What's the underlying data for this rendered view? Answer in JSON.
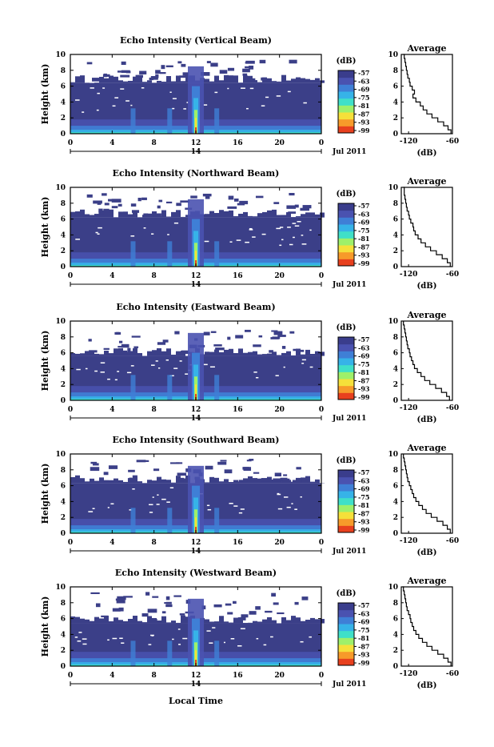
{
  "common": {
    "ylabel": "Height (km)",
    "date_day": "14",
    "date_label": "Jul 2011",
    "xlabel": "Local Time",
    "colorbar_unit": "(dB)",
    "colorbar_ticks": [
      "-57",
      "-63",
      "-69",
      "-75",
      "-81",
      "-87",
      "-93",
      "-99"
    ],
    "colorbar_colors": [
      "#3a3d8c",
      "#4a52b0",
      "#3f7fd6",
      "#36b3e8",
      "#3fe0c8",
      "#9ef06a",
      "#f5e03a",
      "#f79a2a",
      "#e8401e"
    ],
    "avg_title": "Average",
    "avg_xlabel": "(dB)",
    "avg_xticks": [
      "-120",
      "-60"
    ],
    "background_color": "#3b3f88",
    "streak_color": "#f5e03a",
    "hot_color": "#e8401e"
  },
  "chart_data": [
    {
      "type": "heatmap",
      "title": "Echo Intensity (Vertical Beam)",
      "x_ticks": [
        "0",
        "4",
        "8",
        "12",
        "16",
        "20",
        "0"
      ],
      "y_ticks": [
        "10",
        "8",
        "6",
        "4",
        "2",
        "0"
      ],
      "xlim": [
        0,
        24
      ],
      "ylim": [
        0,
        10
      ],
      "cbar_range": [
        -99,
        -57
      ],
      "echo_top_km": 6.4,
      "average_profile": {
        "xlim": [
          -130,
          -60
        ],
        "heights_km": [
          0,
          0.5,
          1,
          1.5,
          2,
          2.5,
          3,
          3.5,
          4,
          4.5,
          5,
          5.5,
          6,
          6.5,
          7,
          7.5,
          8,
          8.5,
          9,
          9.5,
          10
        ],
        "values_db": [
          -62,
          -66,
          -72,
          -80,
          -88,
          -95,
          -100,
          -104,
          -110,
          -114,
          -112,
          -115,
          -118,
          -119,
          -121,
          -122,
          -123,
          -124,
          -125,
          -126,
          -127
        ]
      }
    },
    {
      "type": "heatmap",
      "title": "Echo Intensity (Northward Beam)",
      "x_ticks": [
        "0",
        "4",
        "8",
        "12",
        "16",
        "20",
        "0"
      ],
      "y_ticks": [
        "10",
        "8",
        "6",
        "4",
        "2",
        "0"
      ],
      "xlim": [
        0,
        24
      ],
      "ylim": [
        0,
        10
      ],
      "cbar_range": [
        -99,
        -57
      ],
      "echo_top_km": 6.2,
      "average_profile": {
        "xlim": [
          -130,
          -60
        ],
        "heights_km": [
          0,
          0.5,
          1,
          1.5,
          2,
          2.5,
          3,
          3.5,
          4,
          4.5,
          5,
          5.5,
          6,
          6.5,
          7,
          7.5,
          8,
          8.5,
          9,
          9.5,
          10
        ],
        "values_db": [
          -63,
          -67,
          -74,
          -82,
          -90,
          -97,
          -103,
          -107,
          -111,
          -113,
          -114,
          -117,
          -119,
          -120,
          -122,
          -123,
          -124,
          -125,
          -126,
          -126,
          -127
        ]
      }
    },
    {
      "type": "heatmap",
      "title": "Echo Intensity (Eastward Beam)",
      "x_ticks": [
        "0",
        "4",
        "8",
        "12",
        "16",
        "20",
        "0"
      ],
      "y_ticks": [
        "10",
        "8",
        "6",
        "4",
        "2",
        "0"
      ],
      "xlim": [
        0,
        24
      ],
      "ylim": [
        0,
        10
      ],
      "cbar_range": [
        -99,
        -57
      ],
      "echo_top_km": 5.6,
      "average_profile": {
        "xlim": [
          -130,
          -60
        ],
        "heights_km": [
          0,
          0.5,
          1,
          1.5,
          2,
          2.5,
          3,
          3.5,
          4,
          4.5,
          5,
          5.5,
          6,
          6.5,
          7,
          7.5,
          8,
          8.5,
          9,
          9.5,
          10
        ],
        "values_db": [
          -64,
          -68,
          -75,
          -83,
          -91,
          -98,
          -103,
          -108,
          -112,
          -114,
          -116,
          -118,
          -119,
          -121,
          -122,
          -123,
          -124,
          -125,
          -126,
          -127,
          -127
        ]
      }
    },
    {
      "type": "heatmap",
      "title": "Echo Intensity (Southward Beam)",
      "x_ticks": [
        "0",
        "4",
        "8",
        "12",
        "16",
        "20",
        "0"
      ],
      "y_ticks": [
        "10",
        "8",
        "6",
        "4",
        "2",
        "0"
      ],
      "xlim": [
        0,
        24
      ],
      "ylim": [
        0,
        10
      ],
      "cbar_range": [
        -99,
        -57
      ],
      "echo_top_km": 6.3,
      "average_profile": {
        "xlim": [
          -130,
          -60
        ],
        "heights_km": [
          0,
          0.5,
          1,
          1.5,
          2,
          2.5,
          3,
          3.5,
          4,
          4.5,
          5,
          5.5,
          6,
          6.5,
          7,
          7.5,
          8,
          8.5,
          9,
          9.5,
          10
        ],
        "values_db": [
          -63,
          -67,
          -73,
          -81,
          -89,
          -96,
          -101,
          -106,
          -110,
          -113,
          -115,
          -117,
          -119,
          -121,
          -122,
          -123,
          -124,
          -125,
          -126,
          -127,
          -127
        ]
      }
    },
    {
      "type": "heatmap",
      "title": "Echo Intensity (Westward Beam)",
      "x_ticks": [
        "0",
        "4",
        "8",
        "12",
        "16",
        "20",
        "0"
      ],
      "y_ticks": [
        "10",
        "8",
        "6",
        "4",
        "2",
        "0"
      ],
      "xlim": [
        0,
        24
      ],
      "ylim": [
        0,
        10
      ],
      "cbar_range": [
        -99,
        -57
      ],
      "echo_top_km": 5.4,
      "average_profile": {
        "xlim": [
          -130,
          -60
        ],
        "heights_km": [
          0,
          0.5,
          1,
          1.5,
          2,
          2.5,
          3,
          3.5,
          4,
          4.5,
          5,
          5.5,
          6,
          6.5,
          7,
          7.5,
          8,
          8.5,
          9,
          9.5,
          10
        ],
        "values_db": [
          -62,
          -66,
          -72,
          -80,
          -88,
          -95,
          -101,
          -106,
          -110,
          -113,
          -115,
          -117,
          -118,
          -120,
          -122,
          -123,
          -124,
          -125,
          -126,
          -127,
          -128
        ]
      }
    }
  ]
}
